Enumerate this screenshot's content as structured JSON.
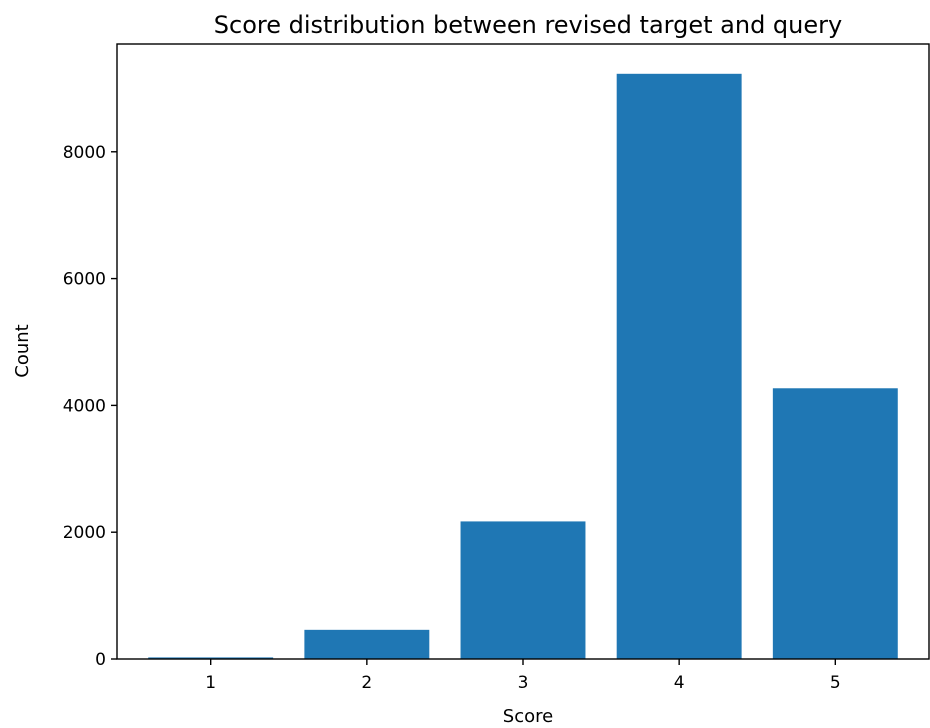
{
  "chart_data": {
    "type": "bar",
    "title": "Score distribution between revised target and query",
    "xlabel": "Score",
    "ylabel": "Count",
    "categories": [
      "1",
      "2",
      "3",
      "4",
      "5"
    ],
    "values": [
      25,
      460,
      2170,
      9230,
      4270
    ],
    "ylim": [
      0,
      9700
    ],
    "yticks": [
      0,
      2000,
      4000,
      6000,
      8000
    ],
    "yticklabels": [
      "0",
      "2000",
      "4000",
      "6000",
      "8000"
    ],
    "bar_color": "#1f77b4",
    "grid": false,
    "legend": "none"
  }
}
